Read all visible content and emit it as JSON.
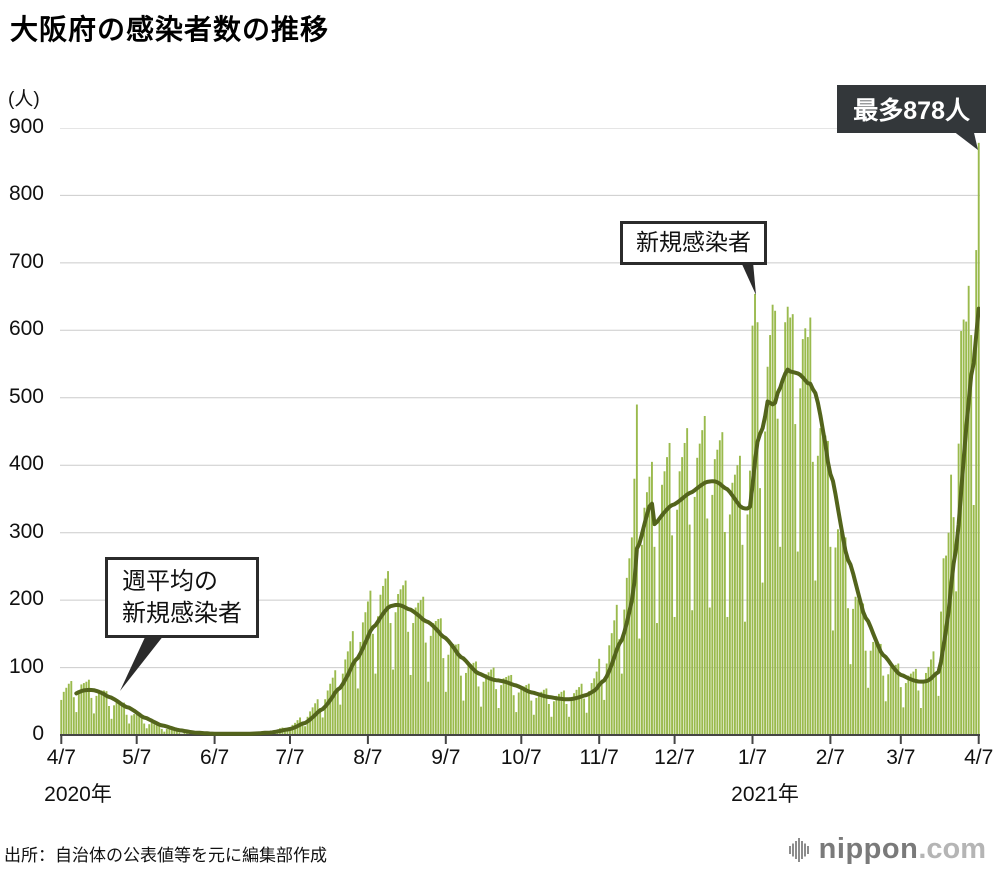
{
  "title": "大阪府の感染者数の推移",
  "y_axis": {
    "unit_label": "(人)"
  },
  "x_axis": {
    "year_left": "2020年",
    "year_right": "2021年"
  },
  "annotations": {
    "max": {
      "text": "最多878人"
    },
    "daily": {
      "text": "新規感染者"
    },
    "weekly": {
      "lines": [
        "週平均の",
        "新規感染者"
      ]
    }
  },
  "source": "出所：自治体の公表値等を元に編集部作成",
  "logo": {
    "name": "nippon",
    "suffix": ".com"
  },
  "colors": {
    "bar": "#9aba4d",
    "line": "#53641c",
    "grid": "#cbcbcb",
    "axis": "#454545",
    "text": "#111111",
    "annotation_dark_bg": "#33373a"
  },
  "chart_data": {
    "type": "bar",
    "title": "大阪府の感染者数の推移",
    "unit": "人",
    "x_start": "2020/4/7",
    "x_end": "2021/4/7",
    "ylim": [
      0,
      900
    ],
    "y_ticks": [
      0,
      100,
      200,
      300,
      400,
      500,
      600,
      700,
      800,
      900
    ],
    "x_tick_labels": [
      "4/7",
      "5/7",
      "6/7",
      "7/7",
      "8/7",
      "9/7",
      "10/7",
      "11/7",
      "12/7",
      "1/7",
      "2/7",
      "3/7",
      "4/7"
    ],
    "x_tick_day_index": [
      0,
      30,
      61,
      91,
      122,
      153,
      183,
      214,
      244,
      275,
      306,
      334,
      365
    ],
    "max_value": 878,
    "max_value_date": "2021/4/7",
    "series": [
      {
        "name": "新規感染者",
        "type": "bar",
        "values": [
          52,
          64,
          70,
          76,
          80,
          56,
          34,
          65,
          75,
          77,
          79,
          82,
          55,
          32,
          58,
          65,
          66,
          66,
          65,
          43,
          24,
          44,
          48,
          48,
          48,
          48,
          30,
          17,
          29,
          31,
          30,
          29,
          28,
          17,
          10,
          16,
          18,
          16,
          16,
          15,
          9,
          5,
          9,
          9,
          8,
          7,
          8,
          4,
          2,
          4,
          4,
          3,
          4,
          4,
          3,
          1,
          2,
          2,
          2,
          2,
          3,
          2,
          1,
          2,
          2,
          2,
          2,
          3,
          2,
          1,
          2,
          2,
          2,
          2,
          3,
          2,
          2,
          3,
          3,
          3,
          5,
          5,
          3,
          3,
          6,
          7,
          8,
          10,
          11,
          9,
          6,
          11,
          15,
          18,
          22,
          26,
          20,
          13,
          27,
          35,
          41,
          47,
          53,
          40,
          26,
          53,
          66,
          76,
          85,
          96,
          70,
          45,
          91,
          112,
          124,
          139,
          154,
          111,
          69,
          138,
          167,
          182,
          198,
          214,
          150,
          91,
          176,
          208,
          221,
          232,
          243,
          166,
          97,
          182,
          209,
          216,
          222,
          229,
          153,
          89,
          166,
          189,
          196,
          200,
          205,
          137,
          79,
          147,
          166,
          169,
          172,
          173,
          114,
          64,
          119,
          133,
          135,
          134,
          135,
          88,
          51,
          92,
          103,
          105,
          107,
          109,
          72,
          42,
          79,
          90,
          93,
          97,
          100,
          68,
          40,
          74,
          84,
          86,
          88,
          89,
          59,
          34,
          63,
          72,
          72,
          74,
          76,
          51,
          30,
          55,
          63,
          64,
          67,
          69,
          46,
          27,
          50,
          58,
          61,
          64,
          66,
          46,
          27,
          52,
          62,
          67,
          71,
          76,
          54,
          33,
          65,
          77,
          84,
          94,
          113,
          82,
          52,
          106,
          133,
          151,
          170,
          193,
          142,
          91,
          186,
          233,
          262,
          293,
          380,
          490,
          143,
          282,
          337,
          360,
          383,
          405,
          279,
          166,
          317,
          371,
          391,
          412,
          433,
          296,
          175,
          334,
          391,
          412,
          433,
          455,
          312,
          185,
          353,
          411,
          432,
          452,
          473,
          321,
          189,
          356,
          409,
          423,
          437,
          449,
          301,
          175,
          327,
          374,
          386,
          400,
          414,
          282,
          168,
          327,
          392,
          607,
          654,
          612,
          366,
          226,
          450,
          546,
          593,
          638,
          629,
          469,
          279,
          530,
          612,
          635,
          619,
          624,
          461,
          272,
          514,
          587,
          603,
          590,
          619,
          405,
          229,
          414,
          455,
          451,
          444,
          436,
          279,
          155,
          278,
          305,
          301,
          298,
          293,
          188,
          105,
          187,
          205,
          201,
          198,
          195,
          125,
          70,
          125,
          138,
          137,
          136,
          135,
          88,
          50,
          90,
          101,
          102,
          104,
          106,
          71,
          41,
          77,
          88,
          91,
          94,
          98,
          66,
          40,
          77,
          92,
          101,
          112,
          124,
          90,
          58,
          183,
          262,
          266,
          300,
          386,
          323,
          213,
          432,
          599,
          616,
          613,
          666,
          593,
          341,
          719,
          878
        ]
      },
      {
        "name": "週平均の新規感染者",
        "type": "line",
        "definition": "7日間移動平均",
        "derived_from": "新規感染者"
      }
    ]
  }
}
